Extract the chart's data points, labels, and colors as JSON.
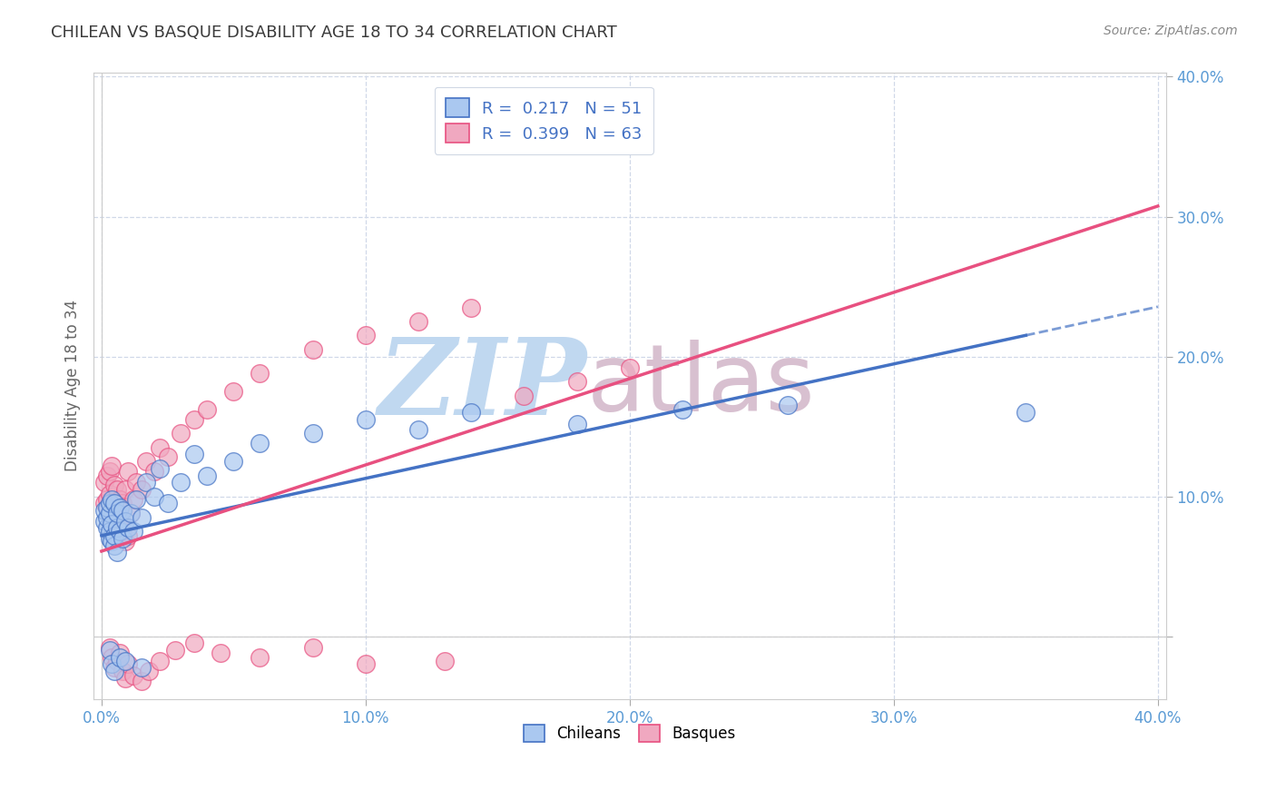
{
  "title": "CHILEAN VS BASQUE DISABILITY AGE 18 TO 34 CORRELATION CHART",
  "source": "Source: ZipAtlas.com",
  "ylabel": "Disability Age 18 to 34",
  "xlim": [
    -0.003,
    0.403
  ],
  "ylim": [
    -0.045,
    0.403
  ],
  "plot_xlim": [
    0.0,
    0.4
  ],
  "plot_ylim": [
    0.0,
    0.4
  ],
  "chilean_R": 0.217,
  "chilean_N": 51,
  "basque_R": 0.399,
  "basque_N": 63,
  "chilean_color": "#aac8f0",
  "basque_color": "#f0a8c0",
  "chilean_line_color": "#4472c4",
  "basque_line_color": "#e85080",
  "chilean_x": [
    0.001,
    0.001,
    0.002,
    0.002,
    0.002,
    0.003,
    0.003,
    0.003,
    0.003,
    0.004,
    0.004,
    0.004,
    0.005,
    0.005,
    0.005,
    0.006,
    0.006,
    0.006,
    0.007,
    0.007,
    0.008,
    0.008,
    0.009,
    0.01,
    0.011,
    0.012,
    0.013,
    0.015,
    0.017,
    0.02,
    0.022,
    0.025,
    0.03,
    0.035,
    0.04,
    0.05,
    0.06,
    0.08,
    0.1,
    0.12,
    0.14,
    0.18,
    0.22,
    0.26,
    0.35,
    0.003,
    0.004,
    0.005,
    0.007,
    0.009,
    0.015
  ],
  "chilean_y": [
    0.082,
    0.09,
    0.078,
    0.085,
    0.092,
    0.07,
    0.075,
    0.088,
    0.095,
    0.068,
    0.08,
    0.098,
    0.065,
    0.072,
    0.095,
    0.06,
    0.078,
    0.088,
    0.075,
    0.092,
    0.07,
    0.09,
    0.082,
    0.078,
    0.088,
    0.075,
    0.098,
    0.085,
    0.11,
    0.1,
    0.12,
    0.095,
    0.11,
    0.13,
    0.115,
    0.125,
    0.138,
    0.145,
    0.155,
    0.148,
    0.16,
    0.152,
    0.162,
    0.165,
    0.16,
    -0.01,
    -0.02,
    -0.025,
    -0.015,
    -0.018,
    -0.022
  ],
  "basque_x": [
    0.001,
    0.001,
    0.002,
    0.002,
    0.003,
    0.003,
    0.003,
    0.004,
    0.004,
    0.004,
    0.005,
    0.005,
    0.005,
    0.006,
    0.006,
    0.006,
    0.007,
    0.007,
    0.008,
    0.008,
    0.009,
    0.009,
    0.01,
    0.01,
    0.011,
    0.012,
    0.013,
    0.015,
    0.017,
    0.02,
    0.022,
    0.025,
    0.03,
    0.035,
    0.04,
    0.05,
    0.06,
    0.08,
    0.1,
    0.12,
    0.14,
    0.16,
    0.18,
    0.2,
    0.003,
    0.004,
    0.005,
    0.006,
    0.007,
    0.008,
    0.009,
    0.01,
    0.012,
    0.015,
    0.018,
    0.022,
    0.028,
    0.035,
    0.045,
    0.06,
    0.08,
    0.1,
    0.13
  ],
  "basque_y": [
    0.095,
    0.11,
    0.098,
    0.115,
    0.088,
    0.102,
    0.118,
    0.082,
    0.095,
    0.122,
    0.078,
    0.092,
    0.108,
    0.072,
    0.088,
    0.105,
    0.082,
    0.098,
    0.075,
    0.095,
    0.068,
    0.105,
    0.072,
    0.118,
    0.088,
    0.098,
    0.11,
    0.105,
    0.125,
    0.118,
    0.135,
    0.128,
    0.145,
    0.155,
    0.162,
    0.175,
    0.188,
    0.205,
    0.215,
    0.225,
    0.235,
    0.172,
    0.182,
    0.192,
    -0.008,
    -0.015,
    -0.022,
    -0.018,
    -0.012,
    -0.025,
    -0.03,
    -0.02,
    -0.028,
    -0.032,
    -0.025,
    -0.018,
    -0.01,
    -0.005,
    -0.012,
    -0.015,
    -0.008,
    -0.02,
    -0.018
  ],
  "watermark_zip_color": "#c0d8f0",
  "watermark_atlas_color": "#d8c0d0",
  "title_color": "#3a3a3a",
  "source_color": "#888888",
  "tick_color": "#5b9bd5",
  "ylabel_color": "#666666",
  "grid_color": "#d0d8e8",
  "spine_color": "#cccccc"
}
